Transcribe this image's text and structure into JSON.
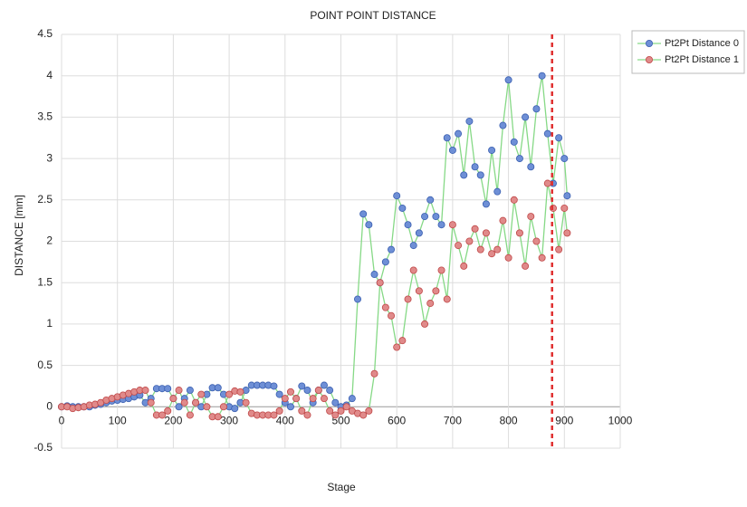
{
  "chart_data": {
    "type": "scatter_line",
    "title": "POINT POINT DISTANCE",
    "x_label": "Stage",
    "y_label": "DISTANCE [mm]",
    "x": [
      0,
      10,
      20,
      30,
      40,
      50,
      60,
      70,
      80,
      90,
      100,
      110,
      120,
      130,
      140,
      150,
      160,
      170,
      180,
      190,
      200,
      210,
      220,
      230,
      240,
      250,
      260,
      270,
      280,
      290,
      300,
      310,
      320,
      330,
      340,
      350,
      360,
      370,
      380,
      390,
      400,
      410,
      420,
      430,
      440,
      450,
      460,
      470,
      480,
      490,
      500,
      510,
      520,
      530,
      540,
      550,
      560,
      570,
      580,
      590,
      600,
      610,
      620,
      630,
      640,
      650,
      660,
      670,
      680,
      690,
      700,
      710,
      720,
      730,
      740,
      750,
      760,
      770,
      780,
      790,
      800,
      810,
      820,
      830,
      840,
      850,
      860,
      870,
      880,
      890,
      900,
      905
    ],
    "series": [
      {
        "name": "Pt2Pt Distance 0",
        "color": "#6e8fd6",
        "edge_color": "#3a5fb0",
        "line_color": "#86d986",
        "values": [
          0,
          0.01,
          0,
          0,
          0,
          0,
          0.02,
          0.03,
          0.05,
          0.07,
          0.08,
          0.09,
          0.1,
          0.12,
          0.14,
          0.05,
          0.1,
          0.22,
          0.22,
          0.22,
          0.1,
          0,
          0.1,
          0.2,
          0.05,
          0,
          0.15,
          0.23,
          0.23,
          0.15,
          0,
          -0.02,
          0.05,
          0.2,
          0.26,
          0.26,
          0.26,
          0.26,
          0.25,
          0.15,
          0.05,
          0,
          0.1,
          0.25,
          0.2,
          0.05,
          0.2,
          0.26,
          0.2,
          0.05,
          0,
          0.02,
          0.1,
          1.3,
          2.33,
          2.2,
          1.6,
          1.5,
          1.75,
          1.9,
          2.55,
          2.4,
          2.2,
          1.95,
          2.1,
          2.3,
          2.5,
          2.3,
          2.2,
          3.25,
          3.1,
          3.3,
          2.8,
          3.45,
          2.9,
          2.8,
          2.45,
          3.1,
          2.6,
          3.4,
          3.95,
          3.2,
          3.0,
          3.5,
          2.9,
          3.6,
          4.0,
          3.3,
          2.7,
          3.25,
          3.0,
          2.55
        ]
      },
      {
        "name": "Pt2Pt Distance 1",
        "color": "#e08a8a",
        "edge_color": "#c04848",
        "line_color": "#86d986",
        "values": [
          0,
          0,
          -0.02,
          -0.01,
          0,
          0.02,
          0.03,
          0.05,
          0.08,
          0.1,
          0.12,
          0.14,
          0.16,
          0.18,
          0.2,
          0.2,
          0.05,
          -0.1,
          -0.1,
          -0.05,
          0.1,
          0.2,
          0.05,
          -0.1,
          0.05,
          0.15,
          0,
          -0.12,
          -0.12,
          0,
          0.15,
          0.19,
          0.18,
          0.05,
          -0.08,
          -0.1,
          -0.1,
          -0.1,
          -0.1,
          -0.05,
          0.1,
          0.18,
          0.1,
          -0.05,
          -0.1,
          0.1,
          0.2,
          0.1,
          -0.05,
          -0.1,
          -0.05,
          0,
          -0.05,
          -0.08,
          -0.1,
          -0.05,
          0.4,
          1.5,
          1.2,
          1.1,
          0.72,
          0.8,
          1.3,
          1.65,
          1.4,
          1.0,
          1.25,
          1.4,
          1.65,
          1.3,
          2.2,
          1.95,
          1.7,
          2.0,
          2.15,
          1.9,
          2.1,
          1.85,
          1.9,
          2.25,
          1.8,
          2.5,
          2.1,
          1.7,
          2.3,
          2.0,
          1.8,
          2.7,
          2.4,
          1.9,
          2.4,
          2.1
        ]
      }
    ],
    "xlim": [
      0,
      1000
    ],
    "xticks": [
      0,
      100,
      200,
      300,
      400,
      500,
      600,
      700,
      800,
      900,
      1000
    ],
    "ylim": [
      -0.5,
      4.5
    ],
    "yticks": [
      -0.5,
      0,
      0.5,
      1,
      1.5,
      2,
      2.5,
      3,
      3.5,
      4,
      4.5
    ],
    "grid": true,
    "legend": "upper right",
    "vline": {
      "x": 878,
      "color": "#e03030"
    }
  }
}
